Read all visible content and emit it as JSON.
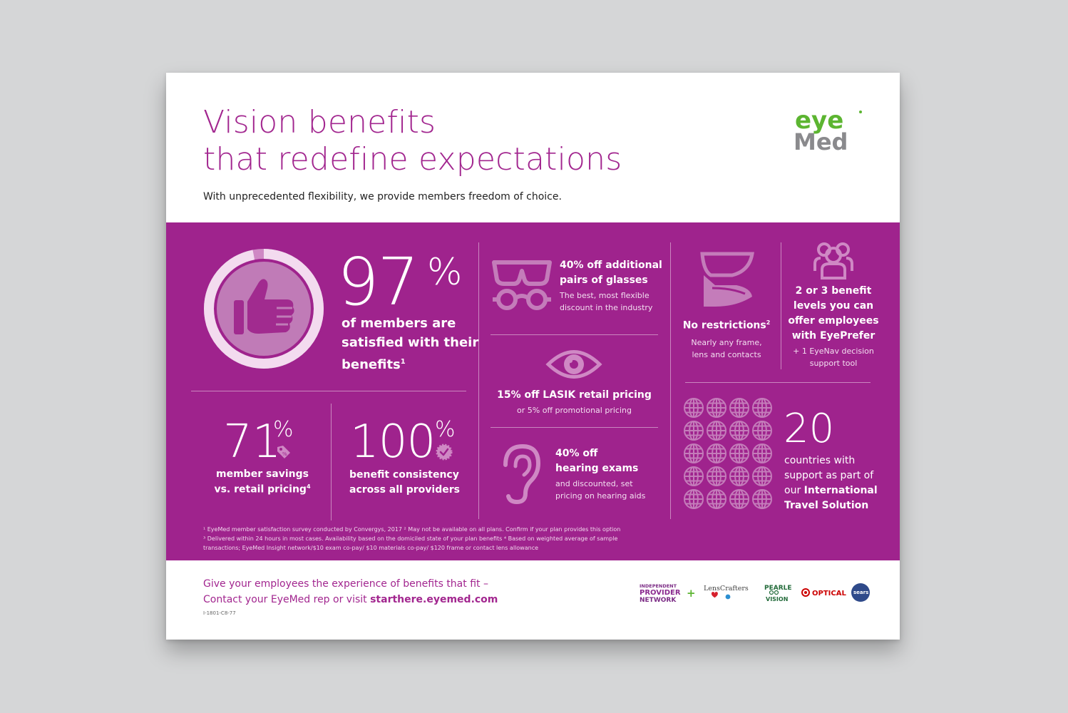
{
  "header": {
    "title_line1": "Vision benefits",
    "title_line2": "that redefine expectations",
    "subtitle": "With unprecedented flexibility, we provide members freedom of choice."
  },
  "logo": {
    "line1": "eye",
    "line2": "Med"
  },
  "colors": {
    "purple": "#9f238d",
    "title": "#a2268f",
    "logo_green": "#5cb531",
    "logo_gray": "#8a8a8d"
  },
  "stats": {
    "satisfaction": {
      "value": "97",
      "unit": "%",
      "line1": "of members are",
      "line2": "satisfied with their",
      "line3": "benefits",
      "sup": "1",
      "icon": "thumbs-up-icon",
      "ring_fill": 0.97
    },
    "savings": {
      "value": "71",
      "unit": "%",
      "line1": "member savings",
      "line2": "vs. retail pricing",
      "sup": "4",
      "icon": "price-tag-icon"
    },
    "consistency": {
      "value": "100",
      "unit": "%",
      "line1": "benefit consistency",
      "line2": "across all providers",
      "icon": "check-badge-icon"
    }
  },
  "offers": {
    "glasses": {
      "line1": "40% off additional",
      "line2": "pairs of glasses",
      "note1": "The best, most flexible",
      "note2": "discount in the industry",
      "icon": "glasses-icon"
    },
    "lasik": {
      "title": "15% off LASIK retail pricing",
      "note": "or 5% off promotional pricing",
      "icon": "eye-icon"
    },
    "hearing": {
      "line1": "40% off",
      "line2": "hearing exams",
      "note1": "and discounted, set",
      "note2": "pricing on hearing aids",
      "icon": "ear-icon"
    },
    "restrictions": {
      "title": "No restrictions",
      "sup": "2",
      "note1": "Nearly any frame,",
      "note2": "lens and contacts",
      "icon": "frame-lens-icon"
    },
    "levels": {
      "line1": "2 or 3 benefit",
      "line2": "levels you can",
      "line3": "offer employees",
      "line4": "with EyePrefer",
      "note1": "+ 1 EyeNav decision",
      "note2": "support tool",
      "icon": "people-group-icon"
    },
    "travel": {
      "value": "20",
      "line1": "countries with",
      "line2": "support as part of",
      "line3_pre": "our ",
      "line3_bold": "International",
      "line4": "Travel Solution",
      "icon": "globe-icon",
      "globe_count": 20
    }
  },
  "footnotes": {
    "line1": "¹ EyeMed member satisfaction survey conducted by Convergys, 2017 ² May not be available on all plans. Confirm if your plan provides this option",
    "line2": "³ Delivered within 24 hours in most cases. Availability based on the domiciled state of your plan benefits ⁴ Based on weighted average of sample",
    "line3": "transactions; EyeMed Insight network/$10 exam co-pay/ $10 materials co-pay/ $120 frame or contact lens allowance"
  },
  "footer": {
    "cta_line1": "Give your employees the experience of benefits that fit –",
    "cta_line2_pre": "Contact your EyeMed rep or visit ",
    "cta_link": "starthere.eyemed.com",
    "code": "I-1801-C8-77"
  },
  "partners": {
    "ipn1": "INDEPENDENT",
    "ipn2": "PROVIDER",
    "ipn3": "NETWORK",
    "plus": "+",
    "lenscrafters": "LensCrafters",
    "pearle1": "PEARLE",
    "pearle2": "VISION",
    "target_optical": "OPTICAL",
    "sears": "sears"
  }
}
